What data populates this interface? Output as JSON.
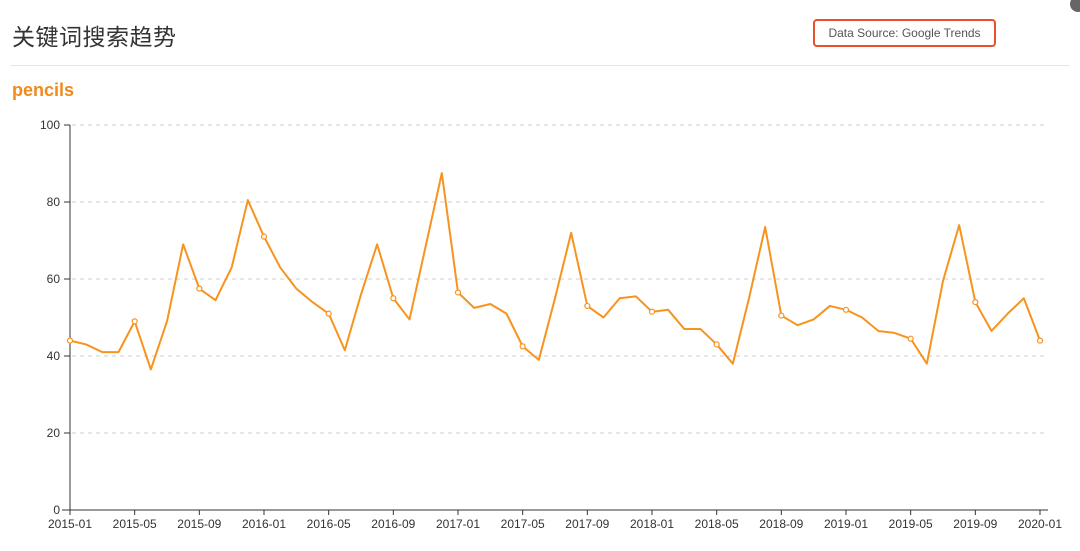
{
  "header": {
    "title": "关键词搜索趋势",
    "source_label": "Data Source: Google Trends"
  },
  "keyword": "pencils",
  "colors": {
    "line": "#f7931e",
    "accent_border": "#e8502d",
    "keyword": "#f08a1c"
  },
  "chart_data": {
    "type": "line",
    "title": "",
    "xlabel": "",
    "ylabel": "",
    "ylim": [
      0,
      100
    ],
    "yticks": [
      0,
      20,
      40,
      60,
      80,
      100
    ],
    "xticks": [
      "2015-01",
      "2015-05",
      "2015-09",
      "2016-01",
      "2016-05",
      "2016-09",
      "2017-01",
      "2017-05",
      "2017-09",
      "2018-01",
      "2018-05",
      "2018-09",
      "2019-01",
      "2019-05",
      "2019-09",
      "2020-01"
    ],
    "grid": true,
    "x_start": "2015-01",
    "x_step": "month",
    "series": [
      {
        "values": [
          44,
          43,
          41,
          41,
          49,
          36.5,
          49,
          69,
          57.5,
          54.5,
          63,
          80.5,
          71,
          63,
          57.5,
          54,
          51,
          41.5,
          56,
          69,
          55,
          49.5,
          68.5,
          87.5,
          56.5,
          52.5,
          53.5,
          51,
          42.5,
          39,
          55,
          72,
          53,
          50,
          55,
          55.5,
          51.5,
          52,
          47,
          47,
          43,
          38,
          55,
          73.5,
          50.5,
          48,
          49.5,
          53,
          52,
          50,
          46.5,
          46,
          44.5,
          38,
          59.5,
          74,
          54,
          46.5,
          51,
          55,
          44
        ],
        "markers_every": 4
      }
    ]
  }
}
